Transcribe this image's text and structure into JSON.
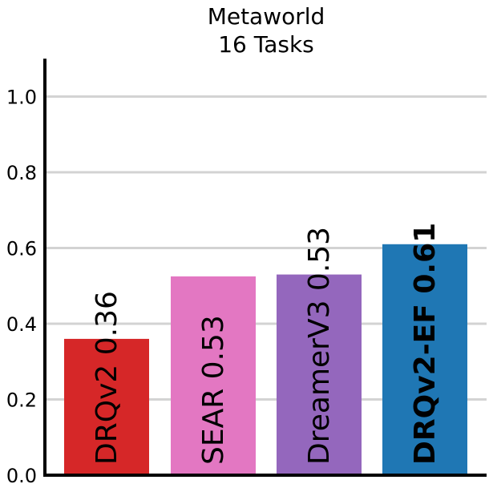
{
  "chart_data": {
    "type": "bar",
    "title": "Metaworld",
    "subtitle": "16 Tasks",
    "xlabel": "",
    "ylabel": "",
    "ylim": [
      0,
      1.1
    ],
    "yticks": [
      0.0,
      0.2,
      0.4,
      0.6,
      0.8,
      1.0
    ],
    "ytick_labels": [
      "0.0",
      "0.2",
      "0.4",
      "0.6",
      "0.8",
      "1.0"
    ],
    "grid": "horizontal",
    "categories": [
      "DRQv2",
      "SEAR",
      "DreamerV3",
      "DRQv2-EF"
    ],
    "values": [
      0.36,
      0.525,
      0.53,
      0.61
    ],
    "bar_labels": [
      "DRQv2 0.36",
      "SEAR 0.53",
      "DreamerV3 0.53",
      "DRQv2-EF 0.61"
    ],
    "bar_label_bold": [
      false,
      false,
      false,
      true
    ],
    "colors": [
      "#d62728",
      "#e377c2",
      "#9467bd",
      "#1f77b4"
    ],
    "grid_color": "#d3d3d3",
    "axis_color": "#000000"
  }
}
